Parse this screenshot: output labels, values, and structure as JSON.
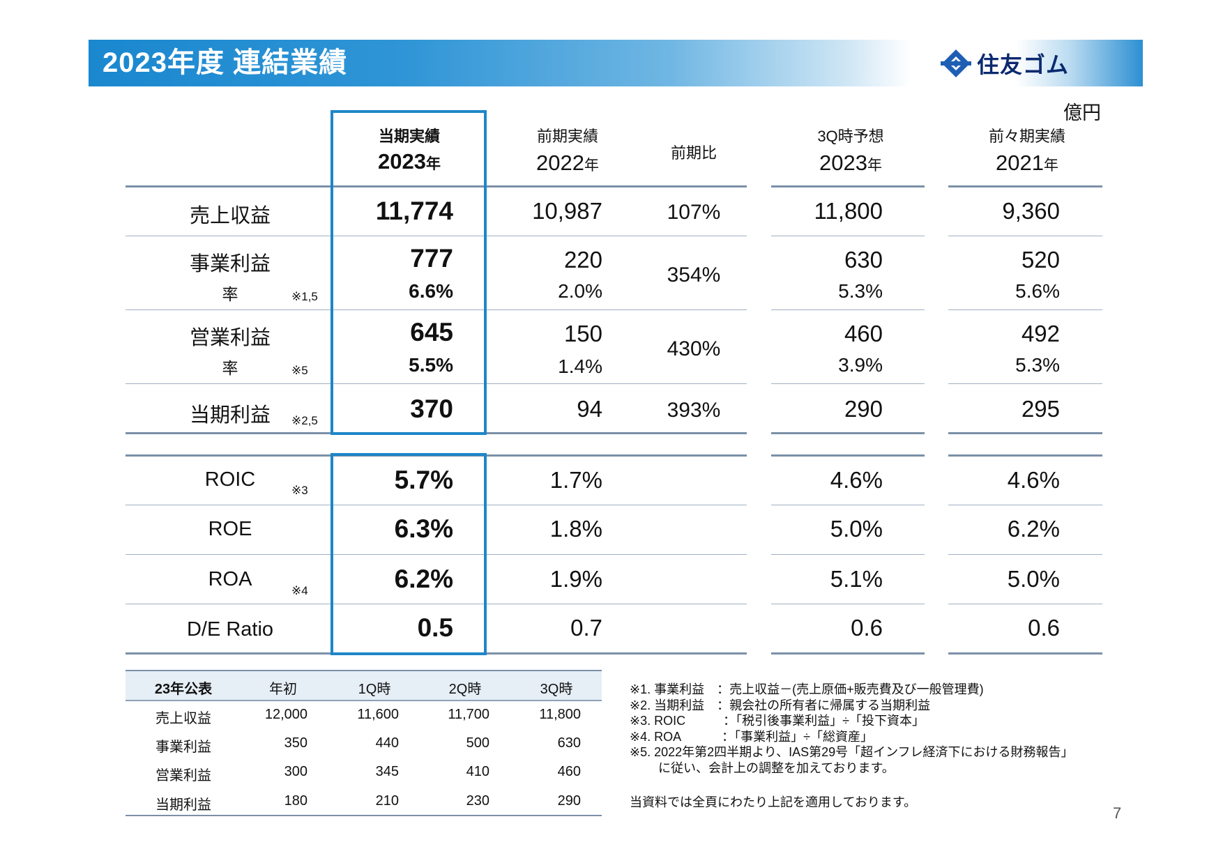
{
  "header": {
    "title": "2023年度 連結業績",
    "logo_text": "住友ゴム"
  },
  "unit": "億円",
  "columns": [
    {
      "top": "当期実績",
      "year": "2023",
      "suffix": "年"
    },
    {
      "top": "前期実績",
      "year": "2022",
      "suffix": "年"
    },
    {
      "top": "前期比",
      "year": "",
      "suffix": ""
    },
    {
      "top": "3Q時予想",
      "year": "2023",
      "suffix": "年"
    },
    {
      "top": "前々期実績",
      "year": "2021",
      "suffix": "年"
    }
  ],
  "rows": {
    "revenue": {
      "label": "売上収益",
      "values": [
        "11,774",
        "10,987",
        "107%",
        "11,800",
        "9,360"
      ]
    },
    "business_profit": {
      "label": "事業利益",
      "rate_label": "率",
      "note": "※1,5",
      "values": [
        "777",
        "220",
        "354%",
        "630",
        "520"
      ],
      "rates": [
        "6.6%",
        "2.0%",
        "5.3%",
        "5.6%"
      ]
    },
    "operating_profit": {
      "label": "営業利益",
      "rate_label": "率",
      "note": "※5",
      "values": [
        "645",
        "150",
        "430%",
        "460",
        "492"
      ],
      "rates": [
        "5.5%",
        "1.4%",
        "3.9%",
        "5.3%"
      ]
    },
    "net_profit": {
      "label": "当期利益",
      "note": "※2,5",
      "values": [
        "370",
        "94",
        "393%",
        "290",
        "295"
      ]
    }
  },
  "ratios": [
    {
      "label": "ROIC",
      "note": "※3",
      "values": [
        "5.7%",
        "1.7%",
        "4.6%",
        "4.6%"
      ]
    },
    {
      "label": "ROE",
      "note": "",
      "values": [
        "6.3%",
        "1.8%",
        "5.0%",
        "6.2%"
      ]
    },
    {
      "label": "ROA",
      "note": "※4",
      "values": [
        "6.2%",
        "1.9%",
        "5.1%",
        "5.0%"
      ]
    },
    {
      "label": "D/E Ratio",
      "note": "",
      "values": [
        "0.5",
        "0.7",
        "0.6",
        "0.6"
      ]
    }
  ],
  "forecast_table": {
    "headers": [
      "23年公表",
      "年初",
      "1Q時",
      "2Q時",
      "3Q時"
    ],
    "rows": [
      {
        "label": "売上収益",
        "values": [
          "12,000",
          "11,600",
          "11,700",
          "11,800"
        ]
      },
      {
        "label": "事業利益",
        "values": [
          "350",
          "440",
          "500",
          "630"
        ]
      },
      {
        "label": "営業利益",
        "values": [
          "300",
          "345",
          "410",
          "460"
        ]
      },
      {
        "label": "当期利益",
        "values": [
          "180",
          "210",
          "230",
          "290"
        ]
      }
    ]
  },
  "notes": [
    "※1. 事業利益　：売上収益－(売上原価+販売費及び一般管理費)",
    "※2. 当期利益　：親会社の所有者に帰属する当期利益",
    "※3. ROIC　　　：「税引後事業利益」÷「投下資本」",
    "※4. ROA　　　 ：「事業利益」÷「総資産」",
    "※5. 2022年第2四半期より、IAS第29号「超インフレ経済下における財務報告」",
    "　　 に従い、会計上の調整を加えております。"
  ],
  "closing": "当資料では全頁にわたり上記を適用しております。",
  "page_number": "7"
}
